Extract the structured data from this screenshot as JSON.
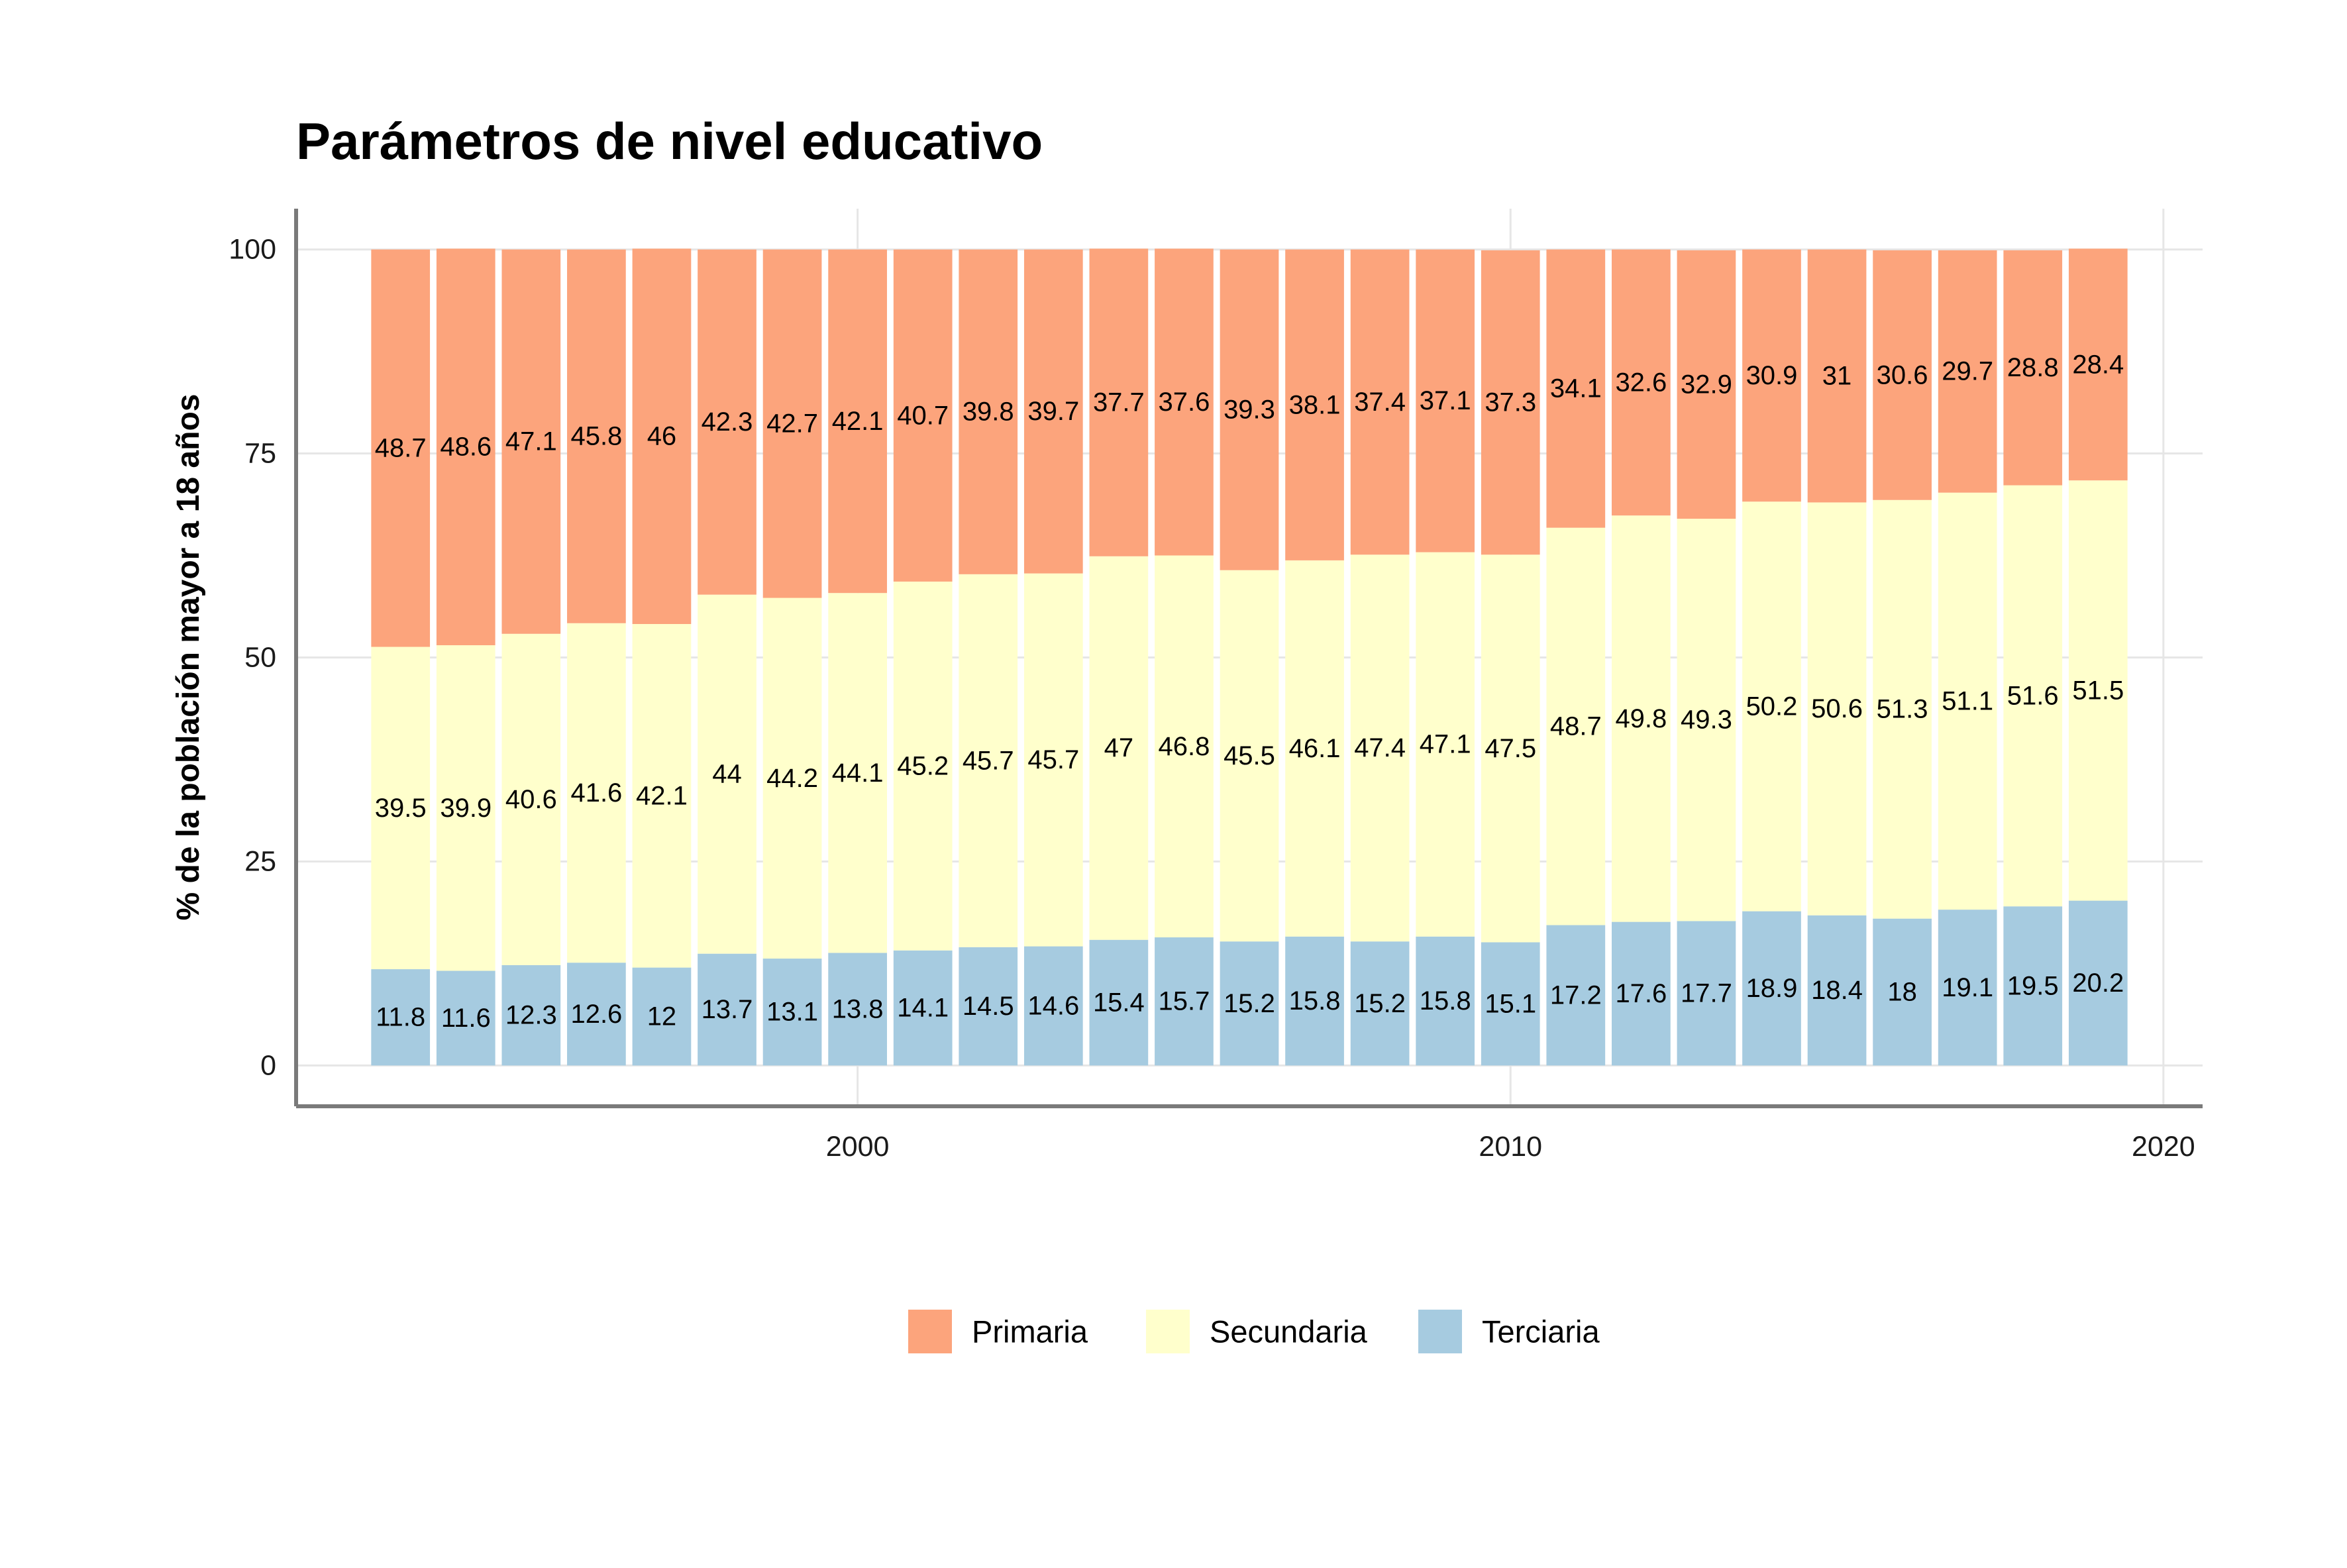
{
  "chart_data": {
    "type": "bar",
    "stacked": true,
    "title": "Parámetros de nivel educativo",
    "xlabel": "",
    "ylabel": "% de la población mayor a 18 años",
    "x": [
      1993,
      1994,
      1995,
      1996,
      1997,
      1998,
      1999,
      2000,
      2001,
      2002,
      2003,
      2004,
      2005,
      2006,
      2007,
      2008,
      2009,
      2010,
      2011,
      2012,
      2013,
      2014,
      2015,
      2016,
      2017,
      2018,
      2019
    ],
    "xlim": [
      1991.4,
      2020.6
    ],
    "ylim": [
      -5,
      105
    ],
    "x_ticks": [
      "2000",
      "2010",
      "2020"
    ],
    "y_ticks": [
      "0",
      "25",
      "50",
      "75",
      "100"
    ],
    "grid": true,
    "legend_position": "bottom",
    "series": [
      {
        "name": "Terciaria",
        "color": "#a6cbe0",
        "values": [
          11.8,
          11.6,
          12.3,
          12.6,
          12,
          13.7,
          13.1,
          13.8,
          14.1,
          14.5,
          14.6,
          15.4,
          15.7,
          15.2,
          15.8,
          15.2,
          15.8,
          15.1,
          17.2,
          17.6,
          17.7,
          18.9,
          18.4,
          18,
          19.1,
          19.5,
          20.2
        ]
      },
      {
        "name": "Secundaria",
        "color": "#ffffcc",
        "values": [
          39.5,
          39.9,
          40.6,
          41.6,
          42.1,
          44,
          44.2,
          44.1,
          45.2,
          45.7,
          45.7,
          47,
          46.8,
          45.5,
          46.1,
          47.4,
          47.1,
          47.5,
          48.7,
          49.8,
          49.3,
          50.2,
          50.6,
          51.3,
          51.1,
          51.6,
          51.5
        ]
      },
      {
        "name": "Primaria",
        "color": "#fca47c",
        "values": [
          48.7,
          48.6,
          47.1,
          45.8,
          46,
          42.3,
          42.7,
          42.1,
          40.7,
          39.8,
          39.7,
          37.7,
          37.6,
          39.3,
          38.1,
          37.4,
          37.1,
          37.3,
          34.1,
          32.6,
          32.9,
          30.9,
          31,
          30.6,
          29.7,
          28.8,
          28.4
        ]
      }
    ],
    "legend_order": [
      "Primaria",
      "Secundaria",
      "Terciaria"
    ]
  }
}
